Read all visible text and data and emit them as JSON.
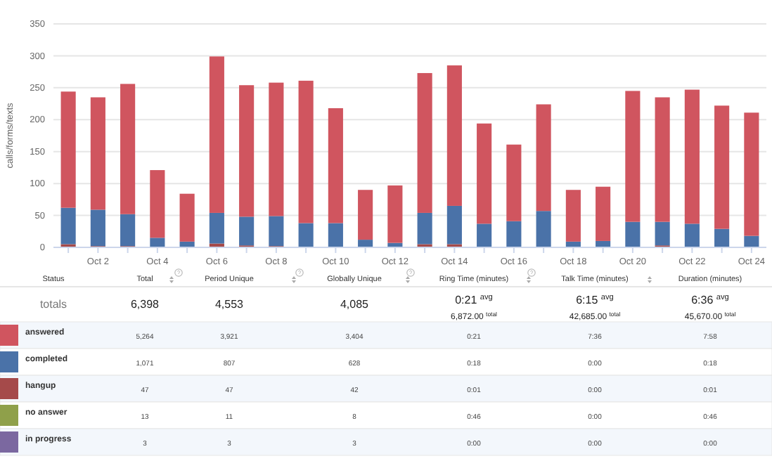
{
  "chart_data": [
    {
      "type": "bar",
      "stacked": true,
      "ylabel": "calls/forms/texts",
      "ylim": [
        0,
        350
      ],
      "yticks": [
        0,
        50,
        100,
        150,
        200,
        250,
        300,
        350
      ],
      "grid": "y",
      "categories": [
        null,
        "Oct 2",
        null,
        "Oct 4",
        null,
        "Oct 6",
        null,
        "Oct 8",
        null,
        "Oct 10",
        null,
        "Oct 12",
        null,
        "Oct 14",
        null,
        "Oct 16",
        null,
        "Oct 18",
        null,
        "Oct 20",
        null,
        "Oct 22",
        null,
        "Oct 24"
      ],
      "series": [
        {
          "color": "#a54a4a",
          "values": [
            5,
            2,
            2,
            0,
            0,
            6,
            3,
            2,
            0,
            0,
            0,
            0,
            5,
            5,
            0,
            0,
            0,
            0,
            0,
            0,
            3,
            0,
            0,
            0
          ]
        },
        {
          "color": "#4a72a8",
          "values": [
            57,
            57,
            50,
            15,
            9,
            48,
            45,
            47,
            38,
            38,
            12,
            7,
            49,
            60,
            37,
            41,
            57,
            9,
            10,
            40,
            37,
            37,
            29,
            18
          ]
        },
        {
          "color": "#d0555f",
          "values": [
            182,
            176,
            204,
            106,
            75,
            245,
            206,
            209,
            223,
            180,
            78,
            90,
            219,
            220,
            157,
            120,
            167,
            81,
            85,
            205,
            195,
            210,
            193,
            193
          ]
        }
      ]
    },
    {
      "type": "other",
      "colors": [
        "#d0555f",
        "#4a72a8",
        "#a54a4a",
        "#8fa04a",
        "#7b68a0"
      ],
      "annotations": [
        "Status",
        "Total",
        "Period Unique",
        "Globally Unique",
        "Ring Time (minutes)",
        "Talk Time (minutes)",
        "Duration (minutes)",
        "totals",
        "6,398",
        "4,553",
        "4,085",
        "0:21 $^{avg}$",
        "6,872.00 $^{total}$",
        "6:15 $^{avg}$",
        "42,685.00 $^{total}$",
        "6:36 $^{avg}$",
        "45,670.00 $^{total}$",
        "answered",
        "5,264",
        "3,921",
        "3,404",
        "0:21",
        "7:36",
        "7:58",
        "completed",
        "1,071",
        "807",
        "628",
        "0:18",
        "0:00",
        "0:18",
        "hangup",
        "47",
        "47",
        "42",
        "0:01",
        "0:00",
        "0:01",
        "no answer",
        "13",
        "11",
        "8",
        "0:46",
        "0:00",
        "0:46",
        "in progress",
        "3",
        "3",
        "3",
        "0:00",
        "0:00",
        "0:00"
      ]
    }
  ]
}
